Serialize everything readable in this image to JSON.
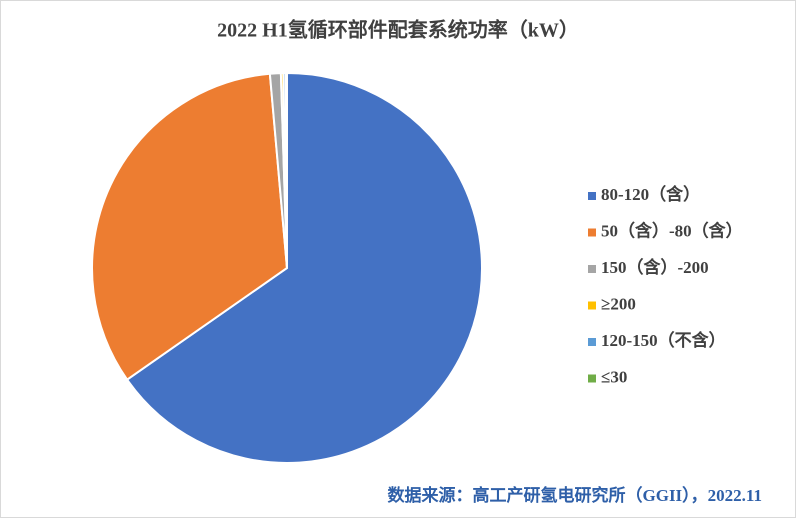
{
  "chart_data": {
    "type": "pie",
    "title": "2022 H1氢循环部件配套系统功率（kW）",
    "categories": [
      "80-120（含）",
      "50（含）-80（含）",
      "150（含）-200",
      "≥200",
      "120-150（不含）",
      "≤30"
    ],
    "values": [
      65.3,
      33.3,
      0.9,
      0.2,
      0.2,
      0.1
    ],
    "colors": [
      "#4472c4",
      "#ed7d31",
      "#a5a5a5",
      "#ffc000",
      "#5b9bd5",
      "#70ad47"
    ],
    "legend": "right",
    "source": "数据来源：高工产研氢电研究所（GGII），2022.11"
  }
}
